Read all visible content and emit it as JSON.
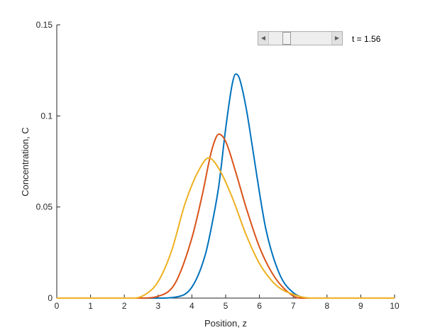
{
  "chart_data": {
    "type": "line",
    "title": "",
    "xlabel": "Position, z",
    "ylabel": "Concentration, C",
    "xlim": [
      0,
      10
    ],
    "ylim": [
      0,
      0.15
    ],
    "x_ticks": [
      0,
      1,
      2,
      3,
      4,
      5,
      6,
      7,
      8,
      9,
      10
    ],
    "y_ticks": [
      0,
      0.05,
      0.1,
      0.15
    ],
    "y_tick_labels": [
      "0",
      "0.05",
      "0.1",
      "0.15"
    ],
    "grid": false,
    "legend": "none",
    "series": [
      {
        "color": "#0072BD",
        "x": [
          0,
          3.0,
          3.5,
          4.0,
          4.4,
          4.6,
          4.8,
          5.0,
          5.2,
          5.3,
          5.4,
          5.6,
          5.8,
          6.0,
          6.2,
          6.6,
          7.0,
          7.5,
          10
        ],
        "y": [
          0,
          0.0,
          0.0005,
          0.006,
          0.024,
          0.041,
          0.062,
          0.093,
          0.118,
          0.123,
          0.121,
          0.105,
          0.082,
          0.058,
          0.037,
          0.013,
          0.003,
          0.0,
          0
        ]
      },
      {
        "color": "#D95319",
        "x": [
          0,
          2.5,
          3.0,
          3.5,
          4.0,
          4.3,
          4.6,
          4.8,
          5.0,
          5.3,
          5.6,
          6.0,
          6.4,
          6.8,
          7.2,
          10
        ],
        "y": [
          0,
          0.0,
          0.001,
          0.008,
          0.033,
          0.056,
          0.082,
          0.09,
          0.086,
          0.069,
          0.05,
          0.028,
          0.013,
          0.004,
          0.0,
          0
        ]
      },
      {
        "color": "#EDB120",
        "x": [
          0,
          2.3,
          2.7,
          3.0,
          3.4,
          3.8,
          4.2,
          4.5,
          4.8,
          5.2,
          5.6,
          6.0,
          6.5,
          7.0,
          7.5,
          10
        ],
        "y": [
          0,
          0.0,
          0.003,
          0.009,
          0.026,
          0.052,
          0.07,
          0.077,
          0.071,
          0.055,
          0.035,
          0.019,
          0.007,
          0.002,
          0.0,
          0
        ]
      }
    ]
  },
  "slider": {
    "left_arrow": "◀",
    "right_arrow": "▶",
    "value": 0.25
  },
  "time_label": "t = 1.56"
}
